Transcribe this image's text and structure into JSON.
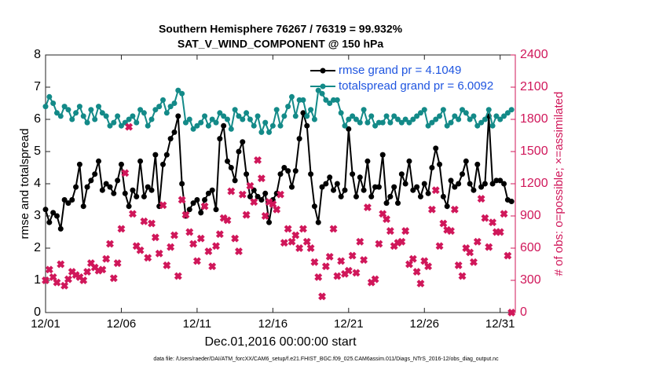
{
  "chart_data": {
    "type": "line",
    "title": "Southern Hemisphere 76267 / 76319 = 99.932%",
    "subtitle": "SAT_V_WIND_COMPONENT @ 150 hPa",
    "xlabel": "Dec.01,2016 00:00:00 start",
    "ylabel": "rmse and totalspread",
    "y2label": "# of obs: o=possible; ×=assimilated",
    "footnote": "data file: /Users/raeder/DAI/ATM_forcXX/CAM6_setup/f.e21.FHIST_BGC.f09_025.CAM6assim.011/Diags_NTrS_2016-12/obs_diag_output.nc",
    "legend": "upper right",
    "xlim": [
      0,
      31
    ],
    "xticks": [
      {
        "value": 0,
        "label": "12/01"
      },
      {
        "value": 5,
        "label": "12/06"
      },
      {
        "value": 10,
        "label": "12/11"
      },
      {
        "value": 15,
        "label": "12/16"
      },
      {
        "value": 20,
        "label": "12/21"
      },
      {
        "value": 25,
        "label": "12/26"
      },
      {
        "value": 30,
        "label": "12/31"
      }
    ],
    "ylim": [
      0,
      8
    ],
    "yticks": [
      0,
      1,
      2,
      3,
      4,
      5,
      6,
      7,
      8
    ],
    "y2lim": [
      0,
      2400
    ],
    "y2ticks": [
      0,
      300,
      600,
      900,
      1200,
      1500,
      1800,
      2100,
      2400
    ],
    "y2color": "#d0175a",
    "x": [
      0,
      0.25,
      0.5,
      0.75,
      1,
      1.25,
      1.5,
      1.75,
      2,
      2.25,
      2.5,
      2.75,
      3,
      3.25,
      3.5,
      3.75,
      4,
      4.25,
      4.5,
      4.75,
      5,
      5.25,
      5.5,
      5.75,
      6,
      6.25,
      6.5,
      6.75,
      7,
      7.25,
      7.5,
      7.75,
      8,
      8.25,
      8.5,
      8.75,
      9,
      9.25,
      9.5,
      9.75,
      10,
      10.25,
      10.5,
      10.75,
      11,
      11.25,
      11.5,
      11.75,
      12,
      12.25,
      12.5,
      12.75,
      13,
      13.25,
      13.5,
      13.75,
      14,
      14.25,
      14.5,
      14.75,
      15,
      15.25,
      15.5,
      15.75,
      16,
      16.25,
      16.5,
      16.75,
      17,
      17.25,
      17.5,
      17.75,
      18,
      18.25,
      18.5,
      18.75,
      19,
      19.25,
      19.5,
      19.75,
      20,
      20.25,
      20.5,
      20.75,
      21,
      21.25,
      21.5,
      21.75,
      22,
      22.25,
      22.5,
      22.75,
      23,
      23.25,
      23.5,
      23.75,
      24,
      24.25,
      24.5,
      24.75,
      25,
      25.25,
      25.5,
      25.75,
      26,
      26.25,
      26.5,
      26.75,
      27,
      27.25,
      27.5,
      27.75,
      28,
      28.25,
      28.5,
      28.75,
      29,
      29.25,
      29.5,
      29.75,
      30,
      30.25,
      30.5,
      30.75
    ],
    "series": [
      {
        "name": "rmse grand pr = 4.1049",
        "color": "#000000",
        "values": [
          3.2,
          2.8,
          3.1,
          3.0,
          2.6,
          3.5,
          3.4,
          3.5,
          3.9,
          4.6,
          3.3,
          3.9,
          4.1,
          4.3,
          4.7,
          3.8,
          4.0,
          3.9,
          3.7,
          4.1,
          4.6,
          3.7,
          3.3,
          3.8,
          3.6,
          4.7,
          3.6,
          3.9,
          3.8,
          4.9,
          3.3,
          4.6,
          4.9,
          5.4,
          5.6,
          6.1,
          4.0,
          3.0,
          3.2,
          3.4,
          3.5,
          3.1,
          3.5,
          3.7,
          3.8,
          3.2,
          5.4,
          5.8,
          4.7,
          4.5,
          4.1,
          5.0,
          5.3,
          4.3,
          3.6,
          3.8,
          3.6,
          3.5,
          3.7,
          2.8,
          3.5,
          3.7,
          4.3,
          4.5,
          4.4,
          3.9,
          4.4,
          5.4,
          6.2,
          5.8,
          4.3,
          3.3,
          2.8,
          3.9,
          4.0,
          4.2,
          3.8,
          4.0,
          3.6,
          3.8,
          5.7,
          4.3,
          3.6,
          4.2,
          3.8,
          4.7,
          3.6,
          3.9,
          3.9,
          4.9,
          3.4,
          3.6,
          3.9,
          3.4,
          4.3,
          4.0,
          4.7,
          3.8,
          3.9,
          3.6,
          4.0,
          3.7,
          4.5,
          5.1,
          4.6,
          3.6,
          3.3,
          4.1,
          3.9,
          4.0,
          4.3,
          4.7,
          4.0,
          3.8,
          4.6,
          3.9,
          4.0,
          6.1,
          4.0,
          4.1,
          4.1,
          4.0,
          3.5,
          3.45
        ]
      },
      {
        "name": "totalspread grand pr = 6.0092",
        "color": "#138a88",
        "values": [
          6.4,
          6.7,
          6.5,
          6.2,
          6.1,
          6.4,
          6.3,
          6.0,
          6.2,
          6.4,
          6.1,
          5.9,
          6.3,
          6.0,
          6.4,
          6.2,
          6.1,
          5.8,
          5.9,
          6.1,
          5.8,
          5.9,
          6.0,
          6.1,
          5.9,
          6.3,
          6.2,
          5.8,
          6.0,
          6.3,
          6.4,
          6.6,
          6.2,
          6.4,
          6.5,
          6.9,
          6.8,
          5.9,
          6.0,
          5.7,
          5.8,
          5.9,
          6.1,
          5.8,
          6.0,
          5.9,
          6.2,
          6.1,
          6.0,
          5.7,
          6.3,
          6.1,
          6.0,
          6.2,
          6.0,
          5.8,
          6.1,
          5.6,
          5.9,
          5.6,
          5.8,
          6.3,
          5.8,
          6.1,
          6.4,
          6.7,
          6.1,
          6.6,
          6.6,
          6.1,
          6.3,
          6.0,
          6.9,
          6.8,
          6.6,
          6.5,
          6.6,
          6.6,
          6.2,
          5.8,
          6.0,
          6.1,
          6.0,
          5.9,
          6.3,
          5.9,
          6.1,
          5.8,
          5.9,
          5.9,
          6.1,
          5.9,
          6.1,
          6.0,
          5.9,
          6.0,
          5.9,
          6.0,
          6.1,
          6.2,
          6.3,
          5.8,
          5.9,
          6.0,
          6.1,
          6.3,
          5.8,
          5.9,
          6.1,
          6.0,
          6.3,
          6.2,
          6.0,
          6.1,
          5.8,
          5.9,
          6.0,
          6.3,
          5.8,
          6.1,
          6.0,
          6.1,
          6.2,
          6.3
        ]
      },
      {
        "type": "scatter",
        "axis": "y2",
        "color": "#d0175a",
        "values": [
          300,
          400,
          330,
          280,
          450,
          250,
          310,
          380,
          350,
          330,
          300,
          380,
          460,
          420,
          390,
          400,
          500,
          640,
          320,
          460,
          780,
          1300,
          1730,
          920,
          620,
          580,
          850,
          510,
          830,
          700,
          550,
          1000,
          440,
          610,
          720,
          340,
          1050,
          910,
          750,
          640,
          480,
          690,
          990,
          570,
          430,
          620,
          730,
          880,
          860,
          1130,
          690,
          570,
          1100,
          910,
          1180,
          1030,
          1420,
          1250,
          900,
          1030,
          1010,
          960,
          1100,
          650,
          780,
          660,
          720,
          600,
          780,
          660,
          600,
          470,
          330,
          150,
          430,
          520,
          780,
          340,
          480,
          360,
          390,
          530,
          370,
          660,
          490,
          980,
          280,
          310,
          640,
          920,
          870,
          760,
          620,
          650,
          660,
          760,
          450,
          500,
          380,
          270,
          480,
          430,
          960,
          1140,
          620,
          830,
          770,
          760,
          960,
          440,
          340,
          600,
          560,
          470,
          660,
          1060,
          880,
          610,
          840,
          750,
          750,
          920,
          530,
          0
        ]
      }
    ]
  }
}
